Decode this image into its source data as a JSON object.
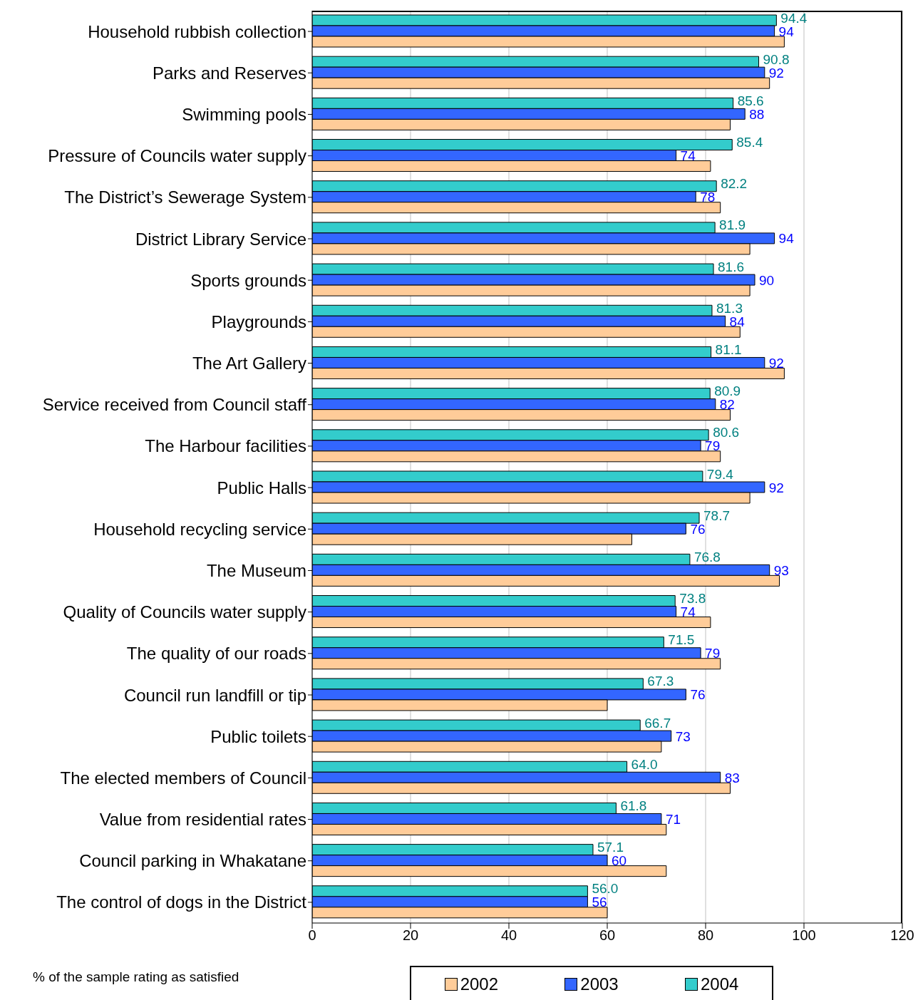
{
  "chart_data": {
    "type": "bar",
    "orientation": "horizontal",
    "categories": [
      "Household rubbish collection",
      "Parks and Reserves",
      "Swimming pools",
      "Pressure of Councils water supply",
      "The District’s Sewerage System",
      "District Library Service",
      "Sports grounds",
      "Playgrounds",
      "The Art Gallery",
      "Service received from Council staff",
      "The Harbour facilities",
      "Public Halls",
      "Household recycling service",
      "The Museum",
      "Quality of Councils water supply",
      "The quality of our roads",
      "Council run landfill or tip",
      "Public toilets",
      "The elected members of Council",
      "Value from residential rates",
      "Council parking in Whakatane",
      "The control of dogs in the District"
    ],
    "series": [
      {
        "name": "2004",
        "color": "#33cccc",
        "values": [
          94.4,
          90.8,
          85.6,
          85.4,
          82.2,
          81.9,
          81.6,
          81.3,
          81.1,
          80.9,
          80.6,
          79.4,
          78.7,
          76.8,
          73.8,
          71.5,
          67.3,
          66.7,
          64.0,
          61.8,
          57.1,
          56.0
        ],
        "value_labels": [
          "94.4",
          "90.8",
          "85.6",
          "85.4",
          "82.2",
          "81.9",
          "81.6",
          "81.3",
          "81.1",
          "80.9",
          "80.6",
          "79.4",
          "78.7",
          "76.8",
          "73.8",
          "71.5",
          "67.3",
          "66.7",
          "64.0",
          "61.8",
          "57.1",
          "56.0"
        ]
      },
      {
        "name": "2003",
        "color": "#3366ff",
        "values": [
          94,
          92,
          88,
          74,
          78,
          94,
          90,
          84,
          92,
          82,
          79,
          92,
          76,
          93,
          74,
          79,
          76,
          73,
          83,
          71,
          60,
          56
        ],
        "value_labels": [
          "94",
          "92",
          "88",
          "74",
          "78",
          "94",
          "90",
          "84",
          "92",
          "82",
          "79",
          "92",
          "76",
          "93",
          "74",
          "79",
          "76",
          "73",
          "83",
          "71",
          "60",
          "56"
        ]
      },
      {
        "name": "2002",
        "color": "#ffcc99",
        "values": [
          96,
          93,
          85,
          81,
          83,
          89,
          89,
          87,
          96,
          85,
          83,
          89,
          65,
          95,
          81,
          83,
          60,
          71,
          85,
          72,
          72,
          60
        ]
      }
    ],
    "xlim": [
      0,
      120
    ],
    "xticks": [
      0,
      20,
      40,
      60,
      80,
      100,
      120
    ],
    "grid": "x",
    "legend": "bottom",
    "annotations": [
      "% of the sample rating as satisfied"
    ]
  }
}
